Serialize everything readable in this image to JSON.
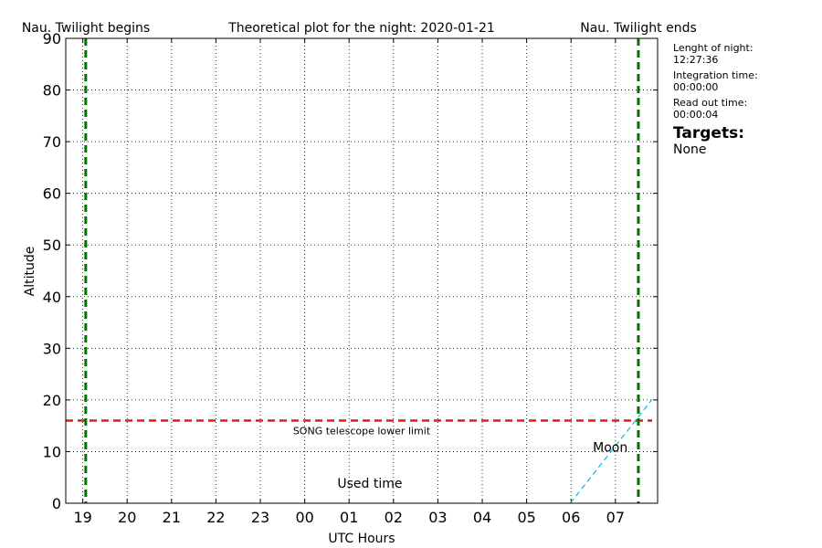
{
  "chart_data": {
    "type": "line",
    "title": "Theoretical plot for the night: 2020-01-21",
    "xlabel": "UTC Hours",
    "ylabel": "Altitude",
    "x_unit": "hours UTC (19 = 19:00 on 2020-01-21, 07 = 07:00 next day)",
    "x_tick_labels": [
      "19",
      "20",
      "21",
      "22",
      "23",
      "00",
      "01",
      "02",
      "03",
      "04",
      "05",
      "06",
      "07"
    ],
    "y_ticks": [
      0,
      10,
      20,
      30,
      40,
      50,
      60,
      70,
      80,
      90
    ],
    "xlim": [
      "18:37",
      "07:57"
    ],
    "ylim": [
      0,
      90
    ],
    "grid": true,
    "twilight_begin": {
      "time": "19:04",
      "label": "Nau. Twilight begins",
      "color": "#007300"
    },
    "twilight_end": {
      "time": "07:31",
      "label": "Nau. Twilight ends",
      "color": "#007300"
    },
    "lower_limit": {
      "altitude": 16,
      "label": "SONG telescope lower limit",
      "color": "#e31a1c"
    },
    "series": [
      {
        "name": "Moon",
        "color": "#00bcd4",
        "style": "dashed",
        "points": [
          {
            "time": "05:59",
            "alt": 0
          },
          {
            "time": "07:49",
            "alt": 20
          }
        ]
      }
    ],
    "annotations": [
      {
        "text": "Used time",
        "time": "01:28",
        "alt": 3
      },
      {
        "text": "Moon",
        "time": "06:53",
        "alt": 10
      }
    ]
  },
  "sidebar": {
    "night_length_label": "Lenght of night:",
    "night_length_value": "12:27:36",
    "integration_label": "Integration time:",
    "integration_value": "00:00:00",
    "readout_label": "Read out time:",
    "readout_value": "00:00:04",
    "targets_heading": "Targets:",
    "targets_value": "None"
  }
}
